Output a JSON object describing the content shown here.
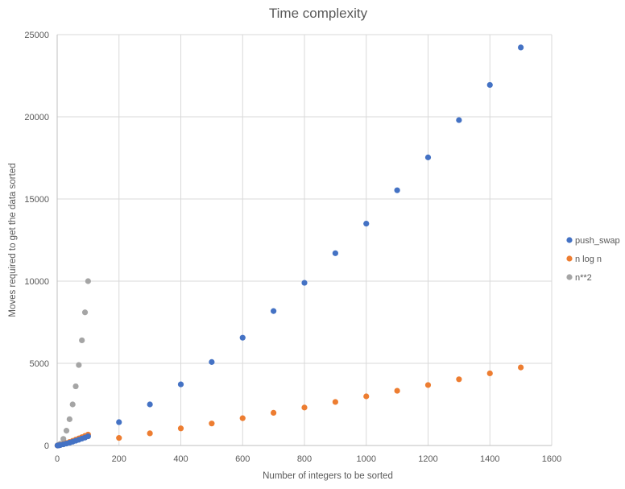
{
  "chart_data": {
    "type": "scatter",
    "title": "Time complexity",
    "xlabel": "Number of integers to be sorted",
    "ylabel": "Moves required to get the data sorted",
    "xlim": [
      0,
      1600
    ],
    "ylim": [
      0,
      25000
    ],
    "x_ticks": [
      0,
      200,
      400,
      600,
      800,
      1000,
      1200,
      1400,
      1600
    ],
    "y_ticks": [
      0,
      5000,
      10000,
      15000,
      20000,
      25000
    ],
    "grid": true,
    "legend_position": "right",
    "series": [
      {
        "name": "push_swap",
        "color": "#4472c4",
        "points": [
          [
            1,
            0
          ],
          [
            3,
            2
          ],
          [
            5,
            8
          ],
          [
            10,
            25
          ],
          [
            20,
            70
          ],
          [
            30,
            120
          ],
          [
            40,
            170
          ],
          [
            50,
            230
          ],
          [
            60,
            290
          ],
          [
            70,
            350
          ],
          [
            80,
            420
          ],
          [
            90,
            480
          ],
          [
            100,
            560
          ],
          [
            200,
            1420
          ],
          [
            300,
            2500
          ],
          [
            400,
            3720
          ],
          [
            500,
            5080
          ],
          [
            600,
            6560
          ],
          [
            700,
            8180
          ],
          [
            800,
            9900
          ],
          [
            900,
            11700
          ],
          [
            1000,
            13500
          ],
          [
            1100,
            15530
          ],
          [
            1200,
            17530
          ],
          [
            1300,
            19800
          ],
          [
            1400,
            21940
          ],
          [
            1500,
            24220
          ]
        ]
      },
      {
        "name": "n log n",
        "color": "#ed7d31",
        "points": [
          [
            1,
            0
          ],
          [
            3,
            5
          ],
          [
            5,
            12
          ],
          [
            10,
            33
          ],
          [
            20,
            86
          ],
          [
            30,
            147
          ],
          [
            40,
            213
          ],
          [
            50,
            282
          ],
          [
            60,
            354
          ],
          [
            70,
            429
          ],
          [
            80,
            506
          ],
          [
            90,
            584
          ],
          [
            100,
            664
          ],
          [
            200,
            460
          ],
          [
            300,
            740
          ],
          [
            400,
            1040
          ],
          [
            500,
            1340
          ],
          [
            600,
            1660
          ],
          [
            700,
            1990
          ],
          [
            800,
            2310
          ],
          [
            900,
            2650
          ],
          [
            1000,
            2990
          ],
          [
            1100,
            3330
          ],
          [
            1200,
            3680
          ],
          [
            1300,
            4030
          ],
          [
            1400,
            4390
          ],
          [
            1500,
            4750
          ]
        ]
      },
      {
        "name": "n**2",
        "color": "#a5a5a5",
        "points": [
          [
            1,
            1
          ],
          [
            5,
            25
          ],
          [
            10,
            100
          ],
          [
            20,
            400
          ],
          [
            30,
            900
          ],
          [
            40,
            1600
          ],
          [
            50,
            2500
          ],
          [
            60,
            3600
          ],
          [
            70,
            4900
          ],
          [
            80,
            6400
          ],
          [
            90,
            8100
          ],
          [
            100,
            10000
          ]
        ]
      }
    ]
  }
}
